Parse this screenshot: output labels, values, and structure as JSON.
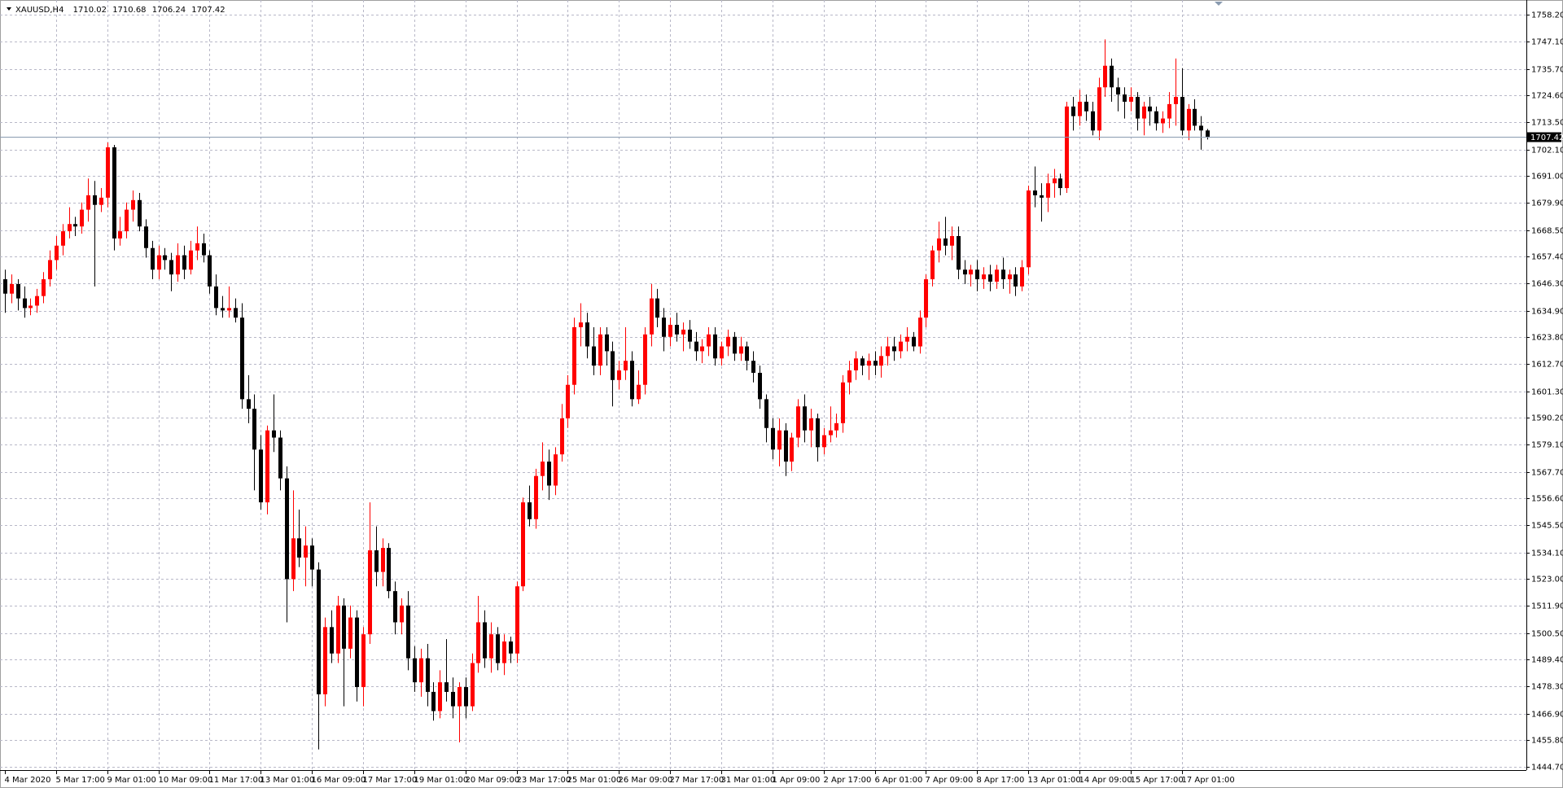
{
  "chart_data": {
    "type": "candlestick",
    "title": "XAUUSD,H4",
    "categories": [
      "4 Mar 2020",
      null,
      null,
      null,
      null,
      null,
      null,
      null,
      "5 Mar 17:00",
      null,
      null,
      null,
      null,
      null,
      null,
      null,
      "9 Mar 01:00",
      null,
      null,
      null,
      null,
      null,
      null,
      null,
      "10 Mar 09:00",
      null,
      null,
      null,
      null,
      null,
      null,
      null,
      "11 Mar 17:00",
      null,
      null,
      null,
      null,
      null,
      null,
      null,
      "13 Mar 01:00",
      null,
      null,
      null,
      null,
      null,
      null,
      null,
      "16 Mar 09:00",
      null,
      null,
      null,
      null,
      null,
      null,
      null,
      "17 Mar 17:00",
      null,
      null,
      null,
      null,
      null,
      null,
      null,
      "19 Mar 01:00",
      null,
      null,
      null,
      null,
      null,
      null,
      null,
      "20 Mar 09:00",
      null,
      null,
      null,
      null,
      null,
      null,
      null,
      "23 Mar 17:00",
      null,
      null,
      null,
      null,
      null,
      null,
      null,
      "25 Mar 01:00",
      null,
      null,
      null,
      null,
      null,
      null,
      null,
      "26 Mar 09:00",
      null,
      null,
      null,
      null,
      null,
      null,
      null,
      "27 Mar 17:00",
      null,
      null,
      null,
      null,
      null,
      null,
      null,
      "31 Mar 01:00",
      null,
      null,
      null,
      null,
      null,
      null,
      null,
      "1 Apr 09:00",
      null,
      null,
      null,
      null,
      null,
      null,
      null,
      "2 Apr 17:00",
      null,
      null,
      null,
      null,
      null,
      null,
      null,
      "6 Apr 01:00",
      null,
      null,
      null,
      null,
      null,
      null,
      null,
      "7 Apr 09:00",
      null,
      null,
      null,
      null,
      null,
      null,
      null,
      "8 Apr 17:00",
      null,
      null,
      null,
      null,
      null,
      null,
      null,
      "13 Apr 01:00",
      null,
      null,
      null,
      null,
      null,
      null,
      null,
      "14 Apr 09:00",
      null,
      null,
      null,
      null,
      null,
      null,
      null,
      "15 Apr 17:00",
      null,
      null,
      null,
      null,
      null,
      null,
      null,
      "17 Apr 01:00",
      null,
      null,
      null,
      null
    ],
    "open": [
      1648,
      1642,
      1646,
      1640,
      1636,
      1637,
      1641,
      1648,
      1656,
      1662,
      1668,
      1671,
      1670,
      1677,
      1683,
      1679,
      1682,
      1703,
      1665,
      1668,
      1677,
      1681,
      1670,
      1661,
      1652,
      1658,
      1656,
      1650,
      1658,
      1652,
      1660,
      1663,
      1658,
      1645,
      1636,
      1635,
      1636,
      1632,
      1598,
      1594,
      1577,
      1555,
      1585,
      1582,
      1565,
      1523,
      1540,
      1532,
      1537,
      1527,
      1475,
      1503,
      1492,
      1512,
      1494,
      1507,
      1478,
      1500,
      1535,
      1526,
      1536,
      1518,
      1505,
      1512,
      1490,
      1480,
      1490,
      1476,
      1468,
      1480,
      1476,
      1470,
      1478,
      1470,
      1488,
      1505,
      1490,
      1500,
      1488,
      1497,
      1492,
      1520,
      1555,
      1548,
      1566,
      1572,
      1562,
      1575,
      1590,
      1604,
      1628,
      1630,
      1620,
      1612,
      1625,
      1618,
      1606,
      1610,
      1614,
      1598,
      1604,
      1625,
      1640,
      1632,
      1624,
      1629,
      1625,
      1627,
      1622,
      1618,
      1620,
      1625,
      1615,
      1620,
      1624,
      1617,
      1620,
      1614,
      1609,
      1598,
      1586,
      1577,
      1585,
      1572,
      1582,
      1595,
      1585,
      1590,
      1578,
      1583,
      1585,
      1588,
      1605,
      1610,
      1615,
      1612,
      1614,
      1612,
      1616,
      1620,
      1618,
      1622,
      1624,
      1620,
      1632,
      1648,
      1660,
      1665,
      1662,
      1666,
      1652,
      1650,
      1652,
      1648,
      1650,
      1647,
      1652,
      1648,
      1650,
      1645,
      1653,
      1685,
      1683,
      1682,
      1688,
      1690,
      1686,
      1720,
      1716,
      1722,
      1718,
      1710,
      1728,
      1737,
      1728,
      1725,
      1722,
      1724,
      1715,
      1720,
      1718,
      1713,
      1715,
      1721,
      1724,
      1710,
      1719,
      1712,
      1710.02
    ],
    "high": [
      1652,
      1650,
      1648,
      1645,
      1640,
      1644,
      1651,
      1660,
      1666,
      1671,
      1678,
      1674,
      1680,
      1690,
      1689,
      1686,
      1705,
      1704,
      1674,
      1680,
      1685,
      1684,
      1673,
      1664,
      1662,
      1661,
      1659,
      1663,
      1662,
      1664,
      1670,
      1667,
      1660,
      1650,
      1641,
      1645,
      1640,
      1638,
      1608,
      1600,
      1583,
      1587,
      1600,
      1585,
      1570,
      1560,
      1552,
      1545,
      1540,
      1530,
      1507,
      1510,
      1516,
      1515,
      1512,
      1510,
      1503,
      1555,
      1545,
      1540,
      1538,
      1522,
      1515,
      1518,
      1495,
      1494,
      1496,
      1480,
      1485,
      1498,
      1482,
      1480,
      1482,
      1492,
      1516,
      1510,
      1505,
      1503,
      1500,
      1499,
      1522,
      1557,
      1562,
      1569,
      1580,
      1577,
      1578,
      1596,
      1608,
      1632,
      1638,
      1634,
      1628,
      1628,
      1628,
      1622,
      1614,
      1628,
      1618,
      1610,
      1628,
      1646,
      1644,
      1636,
      1632,
      1634,
      1630,
      1631,
      1626,
      1623,
      1628,
      1628,
      1622,
      1627,
      1626,
      1624,
      1622,
      1618,
      1612,
      1600,
      1590,
      1590,
      1588,
      1584,
      1598,
      1600,
      1594,
      1592,
      1586,
      1595,
      1592,
      1608,
      1614,
      1618,
      1616,
      1617,
      1618,
      1620,
      1624,
      1624,
      1625,
      1628,
      1626,
      1635,
      1650,
      1662,
      1672,
      1674,
      1670,
      1670,
      1656,
      1654,
      1656,
      1653,
      1654,
      1654,
      1657,
      1652,
      1653,
      1656,
      1687,
      1695,
      1688,
      1692,
      1694,
      1692,
      1722,
      1724,
      1727,
      1725,
      1722,
      1732,
      1748,
      1740,
      1732,
      1728,
      1728,
      1726,
      1722,
      1724,
      1720,
      1718,
      1726,
      1740,
      1736,
      1721,
      1723,
      1716,
      1710.68
    ],
    "low": [
      1634,
      1638,
      1635,
      1632,
      1633,
      1634,
      1638,
      1645,
      1652,
      1658,
      1665,
      1666,
      1667,
      1672,
      1645,
      1676,
      1678,
      1660,
      1662,
      1665,
      1672,
      1668,
      1657,
      1648,
      1648,
      1652,
      1643,
      1647,
      1648,
      1650,
      1656,
      1655,
      1642,
      1633,
      1632,
      1632,
      1630,
      1594,
      1588,
      1560,
      1552,
      1550,
      1576,
      1560,
      1505,
      1518,
      1528,
      1520,
      1520,
      1452,
      1470,
      1488,
      1488,
      1470,
      1490,
      1472,
      1470,
      1496,
      1520,
      1520,
      1515,
      1500,
      1500,
      1485,
      1476,
      1474,
      1470,
      1464,
      1465,
      1472,
      1465,
      1455,
      1465,
      1468,
      1484,
      1486,
      1484,
      1485,
      1483,
      1488,
      1488,
      1518,
      1545,
      1544,
      1560,
      1556,
      1558,
      1572,
      1586,
      1600,
      1620,
      1615,
      1608,
      1608,
      1612,
      1595,
      1602,
      1606,
      1595,
      1596,
      1600,
      1620,
      1628,
      1618,
      1620,
      1622,
      1618,
      1619,
      1614,
      1613,
      1616,
      1612,
      1612,
      1616,
      1614,
      1614,
      1610,
      1605,
      1594,
      1580,
      1573,
      1570,
      1566,
      1568,
      1578,
      1580,
      1578,
      1572,
      1575,
      1580,
      1582,
      1584,
      1600,
      1606,
      1608,
      1606,
      1608,
      1607,
      1612,
      1614,
      1615,
      1618,
      1618,
      1617,
      1628,
      1645,
      1655,
      1658,
      1656,
      1648,
      1646,
      1645,
      1643,
      1644,
      1643,
      1644,
      1644,
      1642,
      1641,
      1643,
      1650,
      1678,
      1672,
      1676,
      1682,
      1683,
      1684,
      1710,
      1712,
      1714,
      1708,
      1706,
      1724,
      1722,
      1718,
      1715,
      1718,
      1710,
      1708,
      1712,
      1710,
      1709,
      1711,
      1712,
      1708,
      1706,
      1710,
      1702,
      1706.24
    ],
    "close": [
      1642,
      1646,
      1640,
      1636,
      1637,
      1641,
      1648,
      1656,
      1662,
      1668,
      1671,
      1670,
      1677,
      1683,
      1679,
      1682,
      1703,
      1665,
      1668,
      1677,
      1681,
      1670,
      1661,
      1652,
      1658,
      1656,
      1650,
      1658,
      1652,
      1660,
      1663,
      1658,
      1645,
      1636,
      1635,
      1636,
      1632,
      1598,
      1594,
      1577,
      1555,
      1585,
      1582,
      1565,
      1523,
      1540,
      1532,
      1537,
      1527,
      1475,
      1503,
      1492,
      1512,
      1494,
      1507,
      1478,
      1500,
      1535,
      1526,
      1536,
      1518,
      1505,
      1512,
      1490,
      1480,
      1490,
      1476,
      1468,
      1480,
      1476,
      1470,
      1478,
      1470,
      1488,
      1505,
      1490,
      1500,
      1488,
      1497,
      1492,
      1520,
      1555,
      1548,
      1566,
      1572,
      1562,
      1575,
      1590,
      1604,
      1628,
      1630,
      1620,
      1612,
      1625,
      1618,
      1606,
      1610,
      1614,
      1598,
      1604,
      1625,
      1640,
      1632,
      1624,
      1629,
      1625,
      1627,
      1622,
      1618,
      1620,
      1625,
      1615,
      1620,
      1624,
      1617,
      1620,
      1614,
      1609,
      1598,
      1586,
      1577,
      1585,
      1572,
      1582,
      1595,
      1585,
      1590,
      1578,
      1583,
      1585,
      1588,
      1605,
      1610,
      1615,
      1612,
      1614,
      1612,
      1616,
      1620,
      1618,
      1622,
      1624,
      1620,
      1632,
      1648,
      1660,
      1665,
      1662,
      1666,
      1652,
      1650,
      1652,
      1648,
      1650,
      1647,
      1652,
      1648,
      1650,
      1645,
      1653,
      1685,
      1683,
      1682,
      1688,
      1690,
      1686,
      1720,
      1716,
      1722,
      1718,
      1710,
      1728,
      1737,
      1728,
      1725,
      1722,
      1724,
      1715,
      1720,
      1718,
      1713,
      1715,
      1721,
      1724,
      1710,
      1719,
      1712,
      1710.02,
      1707.42
    ],
    "up_color": "#ff0000",
    "down_color": "#000000",
    "ylim": [
      1443.4,
      1764.4
    ],
    "yticks": [
      {
        "value": 1758.2,
        "label": "1758.20"
      },
      {
        "value": 1747.1,
        "label": "1747.10"
      },
      {
        "value": 1735.7,
        "label": "1735.70"
      },
      {
        "value": 1724.6,
        "label": "1724.60"
      },
      {
        "value": 1713.5,
        "label": "1713.50"
      },
      {
        "value": 1702.1,
        "label": "1702.10"
      },
      {
        "value": 1691,
        "label": "1691.00"
      },
      {
        "value": 1679.9,
        "label": "1679.90"
      },
      {
        "value": 1668.5,
        "label": "1668.50"
      },
      {
        "value": 1657.4,
        "label": "1657.40"
      },
      {
        "value": 1646.3,
        "label": "1646.30"
      },
      {
        "value": 1634.9,
        "label": "1634.90"
      },
      {
        "value": 1623.8,
        "label": "1623.80"
      },
      {
        "value": 1612.7,
        "label": "1612.70"
      },
      {
        "value": 1601.3,
        "label": "1601.30"
      },
      {
        "value": 1590.2,
        "label": "1590.20"
      },
      {
        "value": 1579.1,
        "label": "1579.10"
      },
      {
        "value": 1567.7,
        "label": "1567.70"
      },
      {
        "value": 1556.6,
        "label": "1556.60"
      },
      {
        "value": 1545.5,
        "label": "1545.50"
      },
      {
        "value": 1534.1,
        "label": "1534.10"
      },
      {
        "value": 1523,
        "label": "1523.00"
      },
      {
        "value": 1511.9,
        "label": "1511.90"
      },
      {
        "value": 1500.5,
        "label": "1500.50"
      },
      {
        "value": 1489.4,
        "label": "1489.40"
      },
      {
        "value": 1478.3,
        "label": "1478.30"
      },
      {
        "value": 1466.9,
        "label": "1466.90"
      },
      {
        "value": 1455.8,
        "label": "1455.80"
      },
      {
        "value": 1444.7,
        "label": "1444.70"
      }
    ],
    "grid": true
  }
}
